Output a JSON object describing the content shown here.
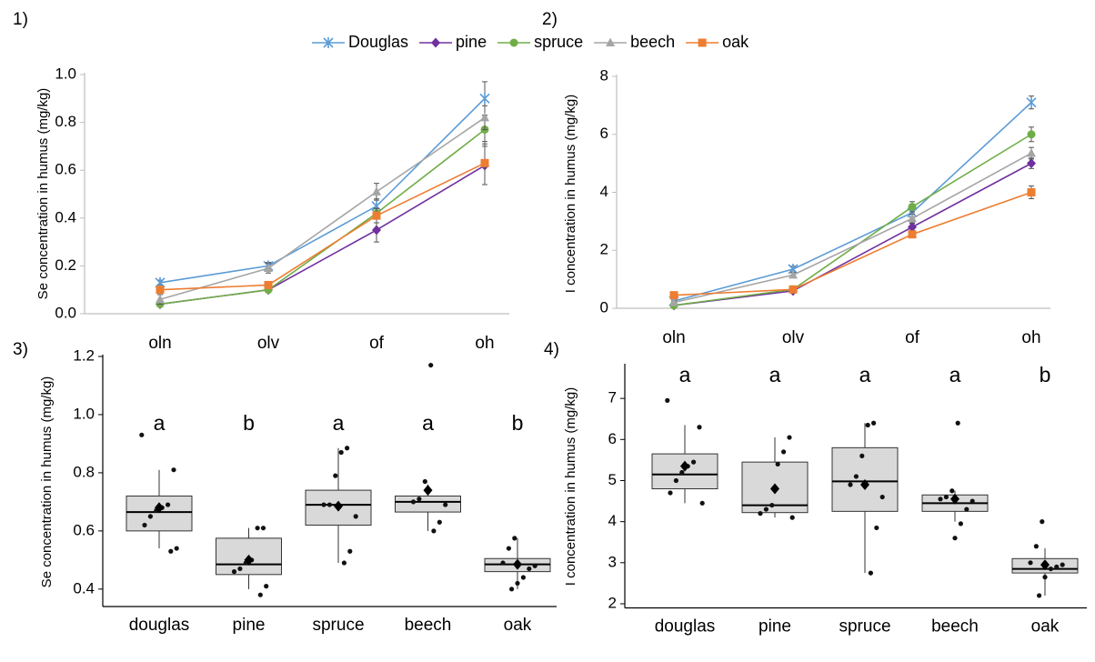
{
  "chart_data": [
    {
      "type": "line",
      "label": "1)",
      "ylabel": "Se concentration in humus (mg/kg)",
      "categories": [
        "oln",
        "olv",
        "of",
        "oh"
      ],
      "ylim": [
        0,
        1
      ],
      "yticks": [
        {
          "value": 0,
          "label": "0.0"
        },
        0.2,
        0.4,
        0.6,
        0.8,
        {
          "value": 1,
          "label": "1.0"
        }
      ],
      "legend": "top",
      "series": [
        {
          "name": "Douglas",
          "color": "#5b9bd5",
          "marker": "asterisk",
          "values": [
            0.13,
            0.2,
            0.45,
            0.9
          ],
          "errors": [
            0.01,
            0.015,
            0.03,
            0.07
          ]
        },
        {
          "name": "pine",
          "color": "#7030a0",
          "marker": "diamond",
          "values": [
            0.04,
            0.1,
            0.35,
            0.62
          ],
          "errors": [
            0.005,
            0.01,
            0.05,
            0.08
          ]
        },
        {
          "name": "spruce",
          "color": "#70ad47",
          "marker": "circle",
          "values": [
            0.04,
            0.1,
            0.42,
            0.77
          ],
          "errors": [
            0.005,
            0.01,
            0.02,
            0.06
          ]
        },
        {
          "name": "beech",
          "color": "#a5a5a5",
          "marker": "triangle",
          "values": [
            0.06,
            0.19,
            0.51,
            0.82
          ],
          "errors": [
            0.02,
            0.02,
            0.035,
            0.05
          ]
        },
        {
          "name": "oak",
          "color": "#ed7d31",
          "marker": "square",
          "values": [
            0.1,
            0.12,
            0.41,
            0.63
          ],
          "errors": [
            0.005,
            0.01,
            0.03,
            0.09
          ]
        }
      ]
    },
    {
      "type": "line",
      "label": "2)",
      "ylabel": "I concentration in humus (mg/kg)",
      "categories": [
        "oln",
        "olv",
        "of",
        "oh"
      ],
      "ylim": [
        0,
        8
      ],
      "yticks": [
        0,
        2,
        4,
        6,
        8
      ],
      "series": [
        {
          "color": "#5b9bd5",
          "marker": "asterisk",
          "values": [
            0.25,
            1.35,
            3.3,
            7.1
          ],
          "errors": [
            0.05,
            0.1,
            0.15,
            0.22
          ]
        },
        {
          "color": "#7030a0",
          "marker": "diamond",
          "values": [
            0.1,
            0.6,
            2.8,
            5.0
          ],
          "errors": [
            0.03,
            0.05,
            0.12,
            0.18
          ]
        },
        {
          "color": "#70ad47",
          "marker": "circle",
          "values": [
            0.1,
            0.65,
            3.5,
            6.0
          ],
          "errors": [
            0.03,
            0.05,
            0.18,
            0.25
          ]
        },
        {
          "color": "#a5a5a5",
          "marker": "triangle",
          "values": [
            0.2,
            1.15,
            3.1,
            5.35
          ],
          "errors": [
            0.05,
            0.08,
            0.15,
            0.2
          ]
        },
        {
          "color": "#ed7d31",
          "marker": "square",
          "values": [
            0.45,
            0.65,
            2.55,
            4.0
          ],
          "errors": [
            0.05,
            0.05,
            0.1,
            0.22
          ]
        }
      ]
    },
    {
      "type": "box",
      "label": "3)",
      "ylabel": "Se concentration in humus (mg/kg)",
      "categories": [
        "douglas",
        "pine",
        "spruce",
        "beech",
        "oak"
      ],
      "ylim": [
        0.34,
        1.2
      ],
      "yticks": [
        0.4,
        0.6,
        0.8,
        {
          "value": 1,
          "label": "1.0"
        },
        1.2
      ],
      "color": "#d9d9d9",
      "boxes": [
        {
          "low": 0.54,
          "q1": 0.6,
          "median": 0.665,
          "q3": 0.72,
          "high": 0.81,
          "mean": 0.68,
          "letter": "a",
          "points": [
            0.93,
            0.81,
            0.69,
            0.68,
            0.67,
            0.65,
            0.62,
            0.54,
            0.53
          ]
        },
        {
          "low": 0.4,
          "q1": 0.45,
          "median": 0.485,
          "q3": 0.575,
          "high": 0.61,
          "mean": 0.5,
          "letter": "b",
          "points": [
            0.61,
            0.61,
            0.5,
            0.49,
            0.47,
            0.46,
            0.41,
            0.38
          ]
        },
        {
          "low": 0.49,
          "q1": 0.62,
          "median": 0.69,
          "q3": 0.74,
          "high": 0.885,
          "mean": 0.685,
          "letter": "a",
          "points": [
            0.885,
            0.87,
            0.79,
            0.69,
            0.69,
            0.65,
            0.53,
            0.49
          ]
        },
        {
          "low": 0.6,
          "q1": 0.665,
          "median": 0.7,
          "q3": 0.72,
          "high": 0.76,
          "mean": 0.74,
          "letter": "a",
          "points": [
            1.17,
            0.77,
            0.71,
            0.7,
            0.69,
            0.63,
            0.6
          ]
        },
        {
          "low": 0.4,
          "q1": 0.46,
          "median": 0.485,
          "q3": 0.505,
          "high": 0.575,
          "mean": 0.485,
          "letter": "b",
          "points": [
            0.575,
            0.54,
            0.49,
            0.48,
            0.47,
            0.44,
            0.42,
            0.4
          ]
        }
      ]
    },
    {
      "type": "box",
      "label": "4)",
      "ylabel": "I concentration in humus (mg/kg)",
      "categories": [
        "douglas",
        "pine",
        "spruce",
        "beech",
        "oak"
      ],
      "ylim": [
        1.9,
        7.8
      ],
      "yticks": [
        2,
        3,
        4,
        5,
        6,
        7
      ],
      "color": "#d9d9d9",
      "boxes": [
        {
          "low": 4.45,
          "q1": 4.8,
          "median": 5.15,
          "q3": 5.65,
          "high": 6.35,
          "mean": 5.35,
          "letter": "a",
          "points": [
            6.95,
            6.3,
            5.45,
            5.35,
            5.2,
            5.0,
            4.7,
            4.45
          ]
        },
        {
          "low": 4.1,
          "q1": 4.22,
          "median": 4.4,
          "q3": 5.45,
          "high": 6.05,
          "mean": 4.8,
          "letter": "a",
          "points": [
            6.05,
            5.7,
            5.4,
            4.4,
            4.3,
            4.2,
            4.1
          ]
        },
        {
          "low": 2.75,
          "q1": 4.25,
          "median": 4.98,
          "q3": 5.8,
          "high": 6.4,
          "mean": 4.9,
          "letter": "a",
          "points": [
            6.4,
            6.35,
            5.6,
            5.1,
            4.9,
            4.6,
            3.85,
            2.75
          ]
        },
        {
          "low": 4.0,
          "q1": 4.25,
          "median": 4.45,
          "q3": 4.65,
          "high": 4.75,
          "mean": 4.55,
          "letter": "a",
          "points": [
            6.4,
            4.75,
            4.6,
            4.55,
            4.5,
            4.3,
            3.95,
            3.6
          ]
        },
        {
          "low": 2.2,
          "q1": 2.75,
          "median": 2.85,
          "q3": 3.1,
          "high": 3.35,
          "mean": 2.95,
          "letter": "b",
          "points": [
            4.0,
            3.4,
            3.0,
            2.95,
            2.9,
            2.85,
            2.65,
            2.2
          ]
        }
      ]
    }
  ]
}
